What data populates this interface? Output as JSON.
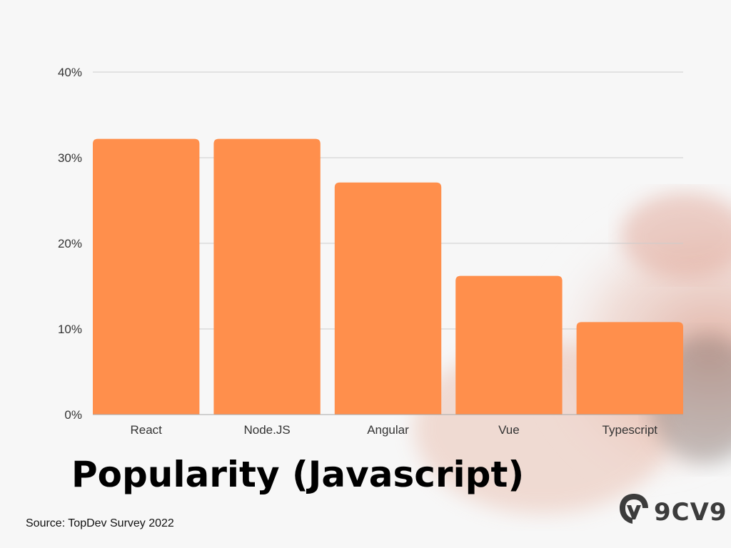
{
  "title": "Popularity (Javascript)",
  "source": "Source: TopDev Survey 2022",
  "brand": {
    "text": "9CV9",
    "logo_icon": "9cv9-logo-icon",
    "color": "#3c3c3c"
  },
  "colors": {
    "bar": "#FF8F4C",
    "grid": "#cccccc",
    "text": "#333333",
    "background": "#f7f7f7"
  },
  "chart_data": {
    "type": "bar",
    "title": "",
    "xlabel": "",
    "ylabel": "",
    "categories": [
      "React",
      "Node.JS",
      "Angular",
      "Vue",
      "Typescript"
    ],
    "values": [
      32.2,
      32.2,
      27.1,
      16.2,
      10.8
    ],
    "ylim": [
      0,
      40
    ],
    "yticks": [
      0,
      10,
      20,
      30,
      40
    ],
    "ytick_labels": [
      "0%",
      "10%",
      "20%",
      "30%",
      "40%"
    ],
    "grid": true
  }
}
